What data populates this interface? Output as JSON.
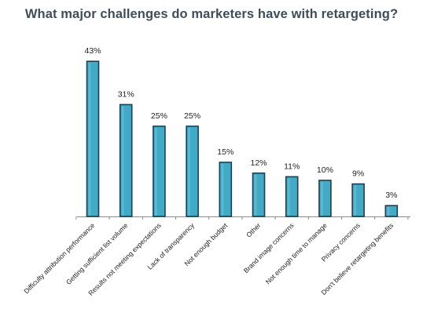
{
  "chart_data": {
    "type": "bar",
    "title": "What major challenges do marketers have with retargeting?",
    "categories": [
      "Difficulty attribution performance",
      "Getting sufficient list volume",
      "Results not meeting expectations",
      "Lack of transparency",
      "Not enough budget",
      "Other",
      "Brand image concerns",
      "Not enough time to manage",
      "Privacy concerns",
      "Don't believe retargeting benefits"
    ],
    "values": [
      43,
      31,
      25,
      25,
      15,
      12,
      11,
      10,
      9,
      3
    ],
    "data_labels": [
      "43%",
      "31%",
      "25%",
      "25%",
      "15%",
      "12%",
      "11%",
      "10%",
      "9%",
      "3%"
    ],
    "xlabel": "",
    "ylabel": "",
    "ylim": [
      0,
      45
    ],
    "grid": false,
    "legend": "none",
    "colors": {
      "bar": "#41aac6",
      "bar_edge": "#1d3f52",
      "title": "#3f4d5a"
    }
  }
}
